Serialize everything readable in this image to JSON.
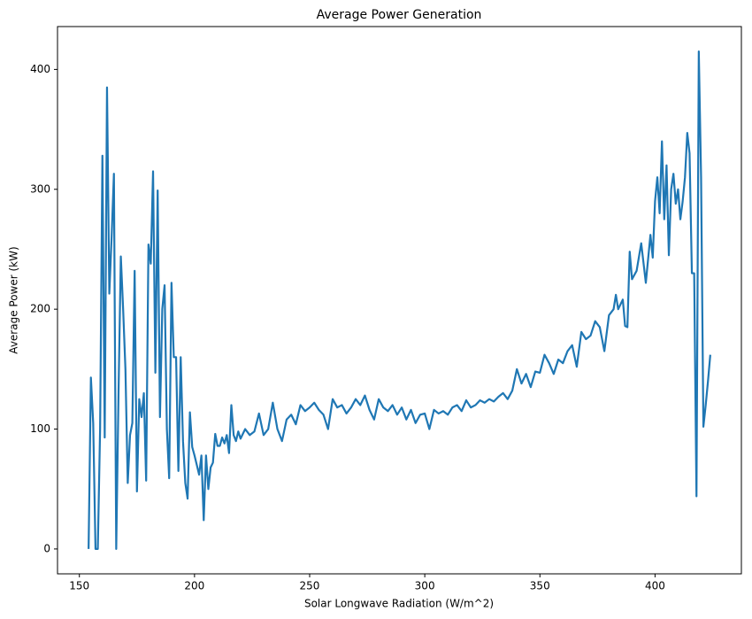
{
  "chart_data": {
    "type": "line",
    "title": "Average Power Generation",
    "xlabel": "Solar Longwave Radiation (W/m^2)",
    "ylabel": "Average Power (kW)",
    "x": [
      154,
      155,
      156,
      157,
      158,
      159,
      160,
      161,
      162,
      163,
      164,
      165,
      166,
      167,
      168,
      169,
      170,
      171,
      172,
      173,
      174,
      175,
      176,
      177,
      178,
      179,
      180,
      181,
      182,
      183,
      184,
      185,
      186,
      187,
      188,
      189,
      190,
      191,
      192,
      193,
      194,
      195,
      196,
      197,
      198,
      199,
      200,
      201,
      202,
      203,
      204,
      205,
      206,
      207,
      208,
      209,
      210,
      211,
      212,
      213,
      214,
      215,
      216,
      217,
      218,
      219,
      220,
      222,
      224,
      226,
      228,
      230,
      232,
      234,
      236,
      238,
      240,
      242,
      244,
      246,
      248,
      250,
      252,
      254,
      256,
      258,
      260,
      262,
      264,
      266,
      268,
      270,
      272,
      274,
      276,
      278,
      280,
      282,
      284,
      286,
      288,
      290,
      292,
      294,
      296,
      298,
      300,
      302,
      304,
      306,
      308,
      310,
      312,
      314,
      316,
      318,
      320,
      322,
      324,
      326,
      328,
      330,
      332,
      334,
      336,
      338,
      340,
      342,
      344,
      346,
      348,
      350,
      352,
      354,
      356,
      358,
      360,
      362,
      364,
      366,
      368,
      370,
      372,
      374,
      376,
      378,
      380,
      382,
      383,
      384,
      386,
      387,
      388,
      389,
      390,
      392,
      394,
      396,
      398,
      399,
      400,
      401,
      402,
      403,
      404,
      405,
      406,
      407,
      408,
      409,
      410,
      411,
      412,
      413,
      414,
      415,
      416,
      417,
      418,
      419,
      420,
      421,
      422,
      423,
      424
    ],
    "series": [
      {
        "name": "Average Power",
        "color": "#1f77b4",
        "values": [
          0,
          143,
          105,
          0,
          0,
          100,
          328,
          93,
          385,
          213,
          260,
          313,
          0,
          130,
          244,
          200,
          150,
          55,
          95,
          105,
          232,
          48,
          125,
          110,
          130,
          57,
          254,
          238,
          315,
          147,
          299,
          110,
          200,
          220,
          100,
          59,
          222,
          160,
          160,
          65,
          160,
          90,
          55,
          42,
          114,
          85,
          78,
          70,
          62,
          78,
          24,
          78,
          50,
          68,
          72,
          96,
          86,
          86,
          93,
          88,
          95,
          80,
          120,
          95,
          90,
          98,
          92,
          100,
          95,
          98,
          113,
          95,
          100,
          122,
          100,
          90,
          108,
          112,
          104,
          120,
          115,
          118,
          122,
          116,
          112,
          100,
          125,
          118,
          120,
          113,
          118,
          125,
          120,
          128,
          116,
          108,
          125,
          118,
          115,
          120,
          112,
          118,
          108,
          116,
          105,
          112,
          113,
          100,
          116,
          113,
          115,
          112,
          118,
          120,
          115,
          124,
          118,
          120,
          124,
          122,
          125,
          123,
          127,
          130,
          125,
          132,
          150,
          138,
          146,
          135,
          148,
          147,
          162,
          155,
          146,
          158,
          155,
          165,
          170,
          152,
          181,
          175,
          178,
          190,
          185,
          165,
          195,
          200,
          212,
          200,
          208,
          186,
          185,
          248,
          225,
          232,
          255,
          222,
          262,
          243,
          290,
          310,
          280,
          340,
          275,
          320,
          245,
          300,
          313,
          288,
          300,
          275,
          290,
          310,
          347,
          330,
          230,
          230,
          44,
          415,
          310,
          102,
          120,
          140,
          162
        ]
      }
    ],
    "xlim": [
      140.5,
      437.5
    ],
    "ylim": [
      -20.75,
      435.75
    ],
    "xticks": [
      150,
      200,
      250,
      300,
      350,
      400
    ],
    "yticks": [
      0,
      100,
      200,
      300,
      400
    ]
  }
}
